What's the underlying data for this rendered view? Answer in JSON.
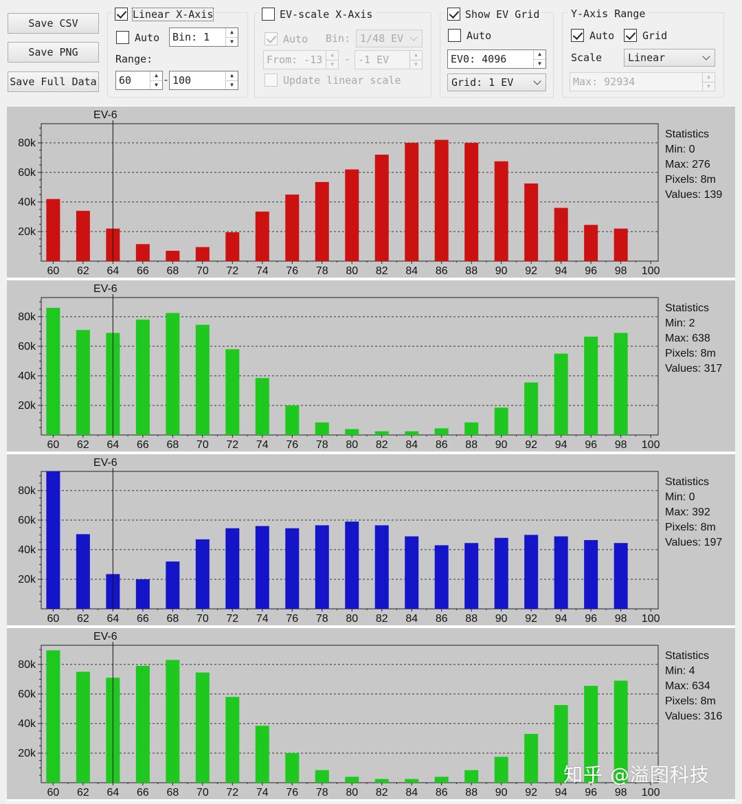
{
  "buttons": {
    "save_csv": "Save CSV",
    "save_png": "Save PNG",
    "save_full": "Save Full Data"
  },
  "linear_axis": {
    "legend": "Linear X-Axis",
    "checked": true,
    "auto_label": "Auto",
    "auto_checked": false,
    "bin_value": "Bin: 1",
    "range_label": "Range:",
    "range_from": "60",
    "range_to": "100"
  },
  "ev_axis": {
    "legend": "EV-scale X-Axis",
    "checked": false,
    "auto_label": "Auto",
    "auto_checked": true,
    "bin_label": "Bin:",
    "bin_value": "1/48 EV",
    "from_value": "From: -13",
    "dash": "-",
    "to_value": "-1 EV",
    "update_label": "Update linear scale",
    "update_checked": false
  },
  "ev_grid": {
    "legend": "Show EV Grid",
    "checked": true,
    "auto_label": "Auto",
    "auto_checked": false,
    "ev0_value": "EV0: 4096",
    "grid_value": "Grid: 1 EV"
  },
  "y_range": {
    "legend": "Y-Axis Range",
    "auto_label": "Auto",
    "auto_checked": true,
    "grid_label": "Grid",
    "grid_checked": true,
    "scale_label": "Scale",
    "scale_value": "Linear",
    "max_value": "Max: 92934"
  },
  "watermark": "知乎 @溢图科技",
  "chart_data": [
    {
      "type": "bar",
      "channel": "red",
      "color": "#cc1111",
      "x": [
        60,
        62,
        64,
        66,
        68,
        70,
        72,
        74,
        76,
        78,
        80,
        82,
        84,
        86,
        88,
        90,
        92,
        94,
        96,
        98
      ],
      "values": [
        42000,
        34000,
        22000,
        11500,
        7000,
        9500,
        19500,
        33500,
        45000,
        53500,
        62000,
        72000,
        80000,
        82000,
        80000,
        67500,
        52500,
        36000,
        24500,
        22000
      ],
      "x_ticks": [
        "60",
        "62",
        "64",
        "66",
        "68",
        "70",
        "72",
        "74",
        "76",
        "78",
        "80",
        "82",
        "84",
        "86",
        "88",
        "90",
        "92",
        "94",
        "96",
        "98",
        "100"
      ],
      "y_ticks": [
        "20k",
        "40k",
        "60k",
        "80k"
      ],
      "xlim": [
        59.2,
        100.5
      ],
      "ylim": [
        0,
        92934
      ],
      "marker_label": "EV-6",
      "marker_x": 64,
      "stats": {
        "title": "Statistics",
        "min": "Min: 0",
        "max": "Max: 276",
        "pixels": "Pixels: 8m",
        "values": "Values: 139"
      }
    },
    {
      "type": "bar",
      "channel": "green",
      "color": "#1ec81e",
      "x": [
        60,
        62,
        64,
        66,
        68,
        70,
        72,
        74,
        76,
        78,
        80,
        82,
        84,
        86,
        88,
        90,
        92,
        94,
        96,
        98
      ],
      "values": [
        86000,
        71000,
        69000,
        78000,
        82500,
        74500,
        58000,
        38500,
        20000,
        8500,
        4000,
        2500,
        2500,
        4500,
        8500,
        18500,
        35500,
        55000,
        66500,
        69000
      ],
      "x_ticks": [
        "60",
        "62",
        "64",
        "66",
        "68",
        "70",
        "72",
        "74",
        "76",
        "78",
        "80",
        "82",
        "84",
        "86",
        "88",
        "90",
        "92",
        "94",
        "96",
        "98",
        "100"
      ],
      "y_ticks": [
        "20k",
        "40k",
        "60k",
        "80k"
      ],
      "xlim": [
        59.2,
        100.5
      ],
      "ylim": [
        0,
        92934
      ],
      "marker_label": "EV-6",
      "marker_x": 64,
      "stats": {
        "title": "Statistics",
        "min": "Min: 2",
        "max": "Max: 638",
        "pixels": "Pixels: 8m",
        "values": "Values: 317"
      }
    },
    {
      "type": "bar",
      "channel": "blue",
      "color": "#1414c8",
      "x": [
        60,
        62,
        64,
        66,
        68,
        70,
        72,
        74,
        76,
        78,
        80,
        82,
        84,
        86,
        88,
        90,
        92,
        94,
        96,
        98
      ],
      "values": [
        92934,
        50500,
        23500,
        20000,
        32000,
        47000,
        54500,
        56000,
        54500,
        56500,
        59000,
        56500,
        49000,
        43000,
        44500,
        48000,
        50000,
        49000,
        46500,
        44500
      ],
      "x_ticks": [
        "60",
        "62",
        "64",
        "66",
        "68",
        "70",
        "72",
        "74",
        "76",
        "78",
        "80",
        "82",
        "84",
        "86",
        "88",
        "90",
        "92",
        "94",
        "96",
        "98",
        "100"
      ],
      "y_ticks": [
        "20k",
        "40k",
        "60k",
        "80k"
      ],
      "xlim": [
        59.2,
        100.5
      ],
      "ylim": [
        0,
        92934
      ],
      "marker_label": "EV-6",
      "marker_x": 64,
      "stats": {
        "title": "Statistics",
        "min": "Min: 0",
        "max": "Max: 392",
        "pixels": "Pixels: 8m",
        "values": "Values: 197"
      }
    },
    {
      "type": "bar",
      "channel": "green2",
      "color": "#1ec81e",
      "x": [
        60,
        62,
        64,
        66,
        68,
        70,
        72,
        74,
        76,
        78,
        80,
        82,
        84,
        86,
        88,
        90,
        92,
        94,
        96,
        98
      ],
      "values": [
        89500,
        75000,
        71000,
        79000,
        83000,
        74500,
        58000,
        38500,
        20000,
        8500,
        4000,
        2500,
        2500,
        4000,
        8500,
        17500,
        33000,
        52500,
        65500,
        69000
      ],
      "x_ticks": [
        "60",
        "62",
        "64",
        "66",
        "68",
        "70",
        "72",
        "74",
        "76",
        "78",
        "80",
        "82",
        "84",
        "86",
        "88",
        "90",
        "92",
        "94",
        "96",
        "98",
        "100"
      ],
      "y_ticks": [
        "20k",
        "40k",
        "60k",
        "80k"
      ],
      "xlim": [
        59.2,
        100.5
      ],
      "ylim": [
        0,
        92934
      ],
      "marker_label": "EV-6",
      "marker_x": 64,
      "stats": {
        "title": "Statistics",
        "min": "Min: 4",
        "max": "Max: 634",
        "pixels": "Pixels: 8m",
        "values": "Values: 316"
      }
    }
  ]
}
